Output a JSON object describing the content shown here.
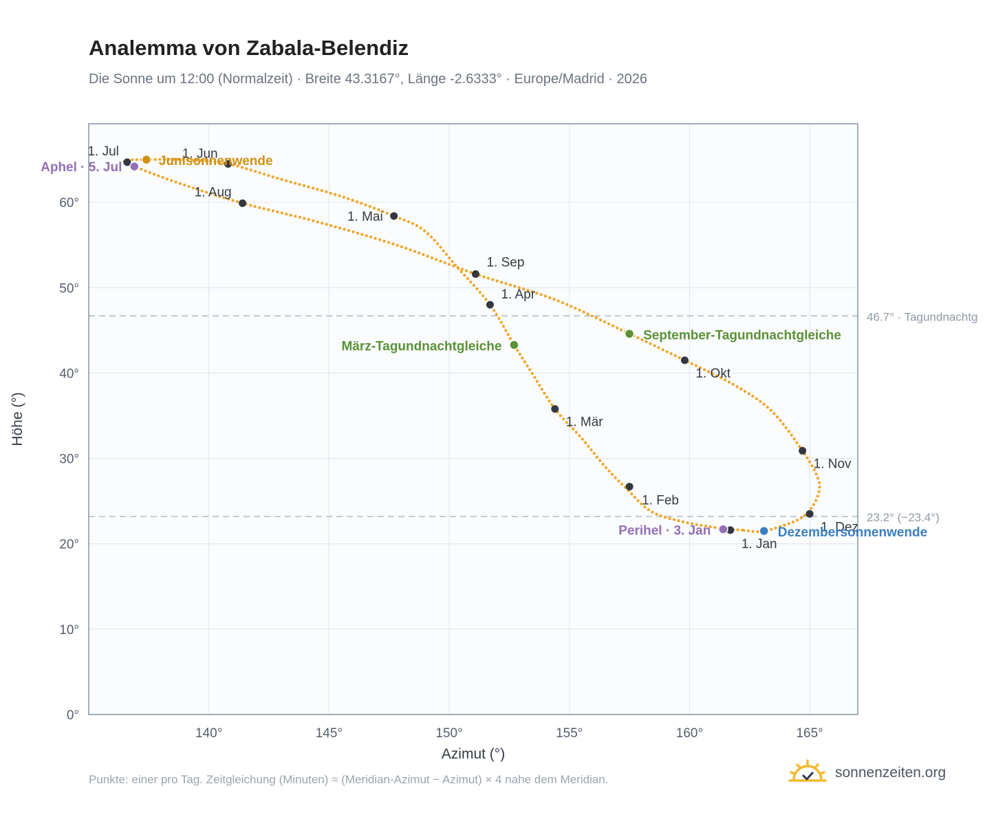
{
  "header": {
    "title": "Analemma von Zabala-Belendiz",
    "subtitle": "Die Sonne um 12:00 (Normalzeit) · Breite 43.3167°, Länge -2.6333° · Europe/Madrid · 2026"
  },
  "footer": {
    "note": "Punkte: einer pro Tag. Zeitgleichung (Minuten) ≈ (Meridian-Azimut − Azimut) × 4 nahe dem Meridian.",
    "brand": "sonnenzeiten.org"
  },
  "colors": {
    "path": "#f2a52b",
    "month_marker": "#333840",
    "solstice_june": "#d09012",
    "solstice_december": "#3b7ec0",
    "equinox": "#5a9138",
    "apsis": "#9470b8",
    "reference_line": "#b4bcc8",
    "plot_bg": "#fafcfd",
    "grid": "#e4e8ee",
    "axis": "#8f99a8"
  },
  "chart_data": {
    "type": "scatter",
    "xlabel": "Azimut (°)",
    "ylabel": "Höhe (°)",
    "xlim": [
      135,
      167
    ],
    "ylim": [
      0,
      69.2
    ],
    "x_ticks": [
      {
        "value": 140,
        "label": "140°"
      },
      {
        "value": 145,
        "label": "145°"
      },
      {
        "value": 150,
        "label": "150°"
      },
      {
        "value": 155,
        "label": "155°"
      },
      {
        "value": 160,
        "label": "160°"
      },
      {
        "value": 165,
        "label": "165°"
      }
    ],
    "y_ticks": [
      {
        "value": 0,
        "label": "0°"
      },
      {
        "value": 10,
        "label": "10°"
      },
      {
        "value": 20,
        "label": "20°"
      },
      {
        "value": 30,
        "label": "30°"
      },
      {
        "value": 40,
        "label": "40°"
      },
      {
        "value": 50,
        "label": "50°"
      },
      {
        "value": 60,
        "label": "60°"
      }
    ],
    "grid": true,
    "reference_lines": [
      {
        "y": 46.7,
        "label": "46.7° · Tagundnachtg"
      },
      {
        "y": 23.2,
        "label": "23.2° (−23.4°)"
      }
    ],
    "path_points": [
      [
        162.2,
        21.6
      ],
      [
        161.1,
        21.9
      ],
      [
        159.7,
        22.6
      ],
      [
        158.4,
        23.8
      ],
      [
        157.4,
        26.4
      ],
      [
        156.5,
        29.0
      ],
      [
        155.5,
        32.4
      ],
      [
        154.4,
        35.8
      ],
      [
        153.4,
        40.2
      ],
      [
        152.7,
        43.3
      ],
      [
        151.7,
        48.0
      ],
      [
        150.3,
        52.5
      ],
      [
        149.0,
        56.6
      ],
      [
        147.7,
        58.4
      ],
      [
        145.5,
        60.7
      ],
      [
        143.0,
        62.7
      ],
      [
        140.8,
        64.5
      ],
      [
        139.0,
        65.0
      ],
      [
        137.4,
        65.0
      ],
      [
        136.5,
        64.9
      ],
      [
        136.9,
        64.2
      ],
      [
        138.8,
        62.2
      ],
      [
        141.4,
        59.9
      ],
      [
        144.4,
        57.8
      ],
      [
        147.8,
        55.0
      ],
      [
        151.1,
        51.6
      ],
      [
        154.4,
        48.6
      ],
      [
        157.5,
        44.6
      ],
      [
        159.8,
        41.5
      ],
      [
        161.8,
        38.7
      ],
      [
        163.4,
        35.6
      ],
      [
        164.7,
        30.9
      ],
      [
        165.3,
        28.0
      ],
      [
        165.4,
        26.3
      ],
      [
        165.1,
        24.3
      ],
      [
        164.5,
        22.8
      ],
      [
        163.1,
        21.5
      ],
      [
        162.2,
        21.6
      ]
    ],
    "month_points": [
      {
        "label": "1. Jan",
        "azimuth": 161.7,
        "altitude": 21.6
      },
      {
        "label": "1. Feb",
        "azimuth": 157.5,
        "altitude": 26.7
      },
      {
        "label": "1. Mär",
        "azimuth": 154.4,
        "altitude": 35.8
      },
      {
        "label": "1. Apr",
        "azimuth": 151.7,
        "altitude": 48.0
      },
      {
        "label": "1. Mai",
        "azimuth": 147.7,
        "altitude": 58.4
      },
      {
        "label": "1. Jun",
        "azimuth": 140.8,
        "altitude": 64.5
      },
      {
        "label": "1. Jul",
        "azimuth": 136.6,
        "altitude": 64.7
      },
      {
        "label": "1. Aug",
        "azimuth": 141.4,
        "altitude": 59.9
      },
      {
        "label": "1. Sep",
        "azimuth": 151.1,
        "altitude": 51.6
      },
      {
        "label": "1. Okt",
        "azimuth": 159.8,
        "altitude": 41.5
      },
      {
        "label": "1. Nov",
        "azimuth": 164.7,
        "altitude": 30.9
      },
      {
        "label": "1. Dez",
        "azimuth": 165.0,
        "altitude": 23.5
      }
    ],
    "events": [
      {
        "label": "Junisonnenwende",
        "azimuth": 137.4,
        "altitude": 65.0,
        "color": "#d09012"
      },
      {
        "label": "Aphel · 5. Jul",
        "azimuth": 136.9,
        "altitude": 64.2,
        "color": "#9470b8"
      },
      {
        "label": "März-Tagundnachtgleiche",
        "azimuth": 152.7,
        "altitude": 43.3,
        "color": "#5a9138"
      },
      {
        "label": "September-Tagundnachtgleiche",
        "azimuth": 157.5,
        "altitude": 44.6,
        "color": "#5a9138"
      },
      {
        "label": "Perihel · 3. Jan",
        "azimuth": 161.4,
        "altitude": 21.7,
        "color": "#9470b8"
      },
      {
        "label": "Dezembersonnenwende",
        "azimuth": 163.1,
        "altitude": 21.5,
        "color": "#3b7ec0"
      }
    ]
  }
}
